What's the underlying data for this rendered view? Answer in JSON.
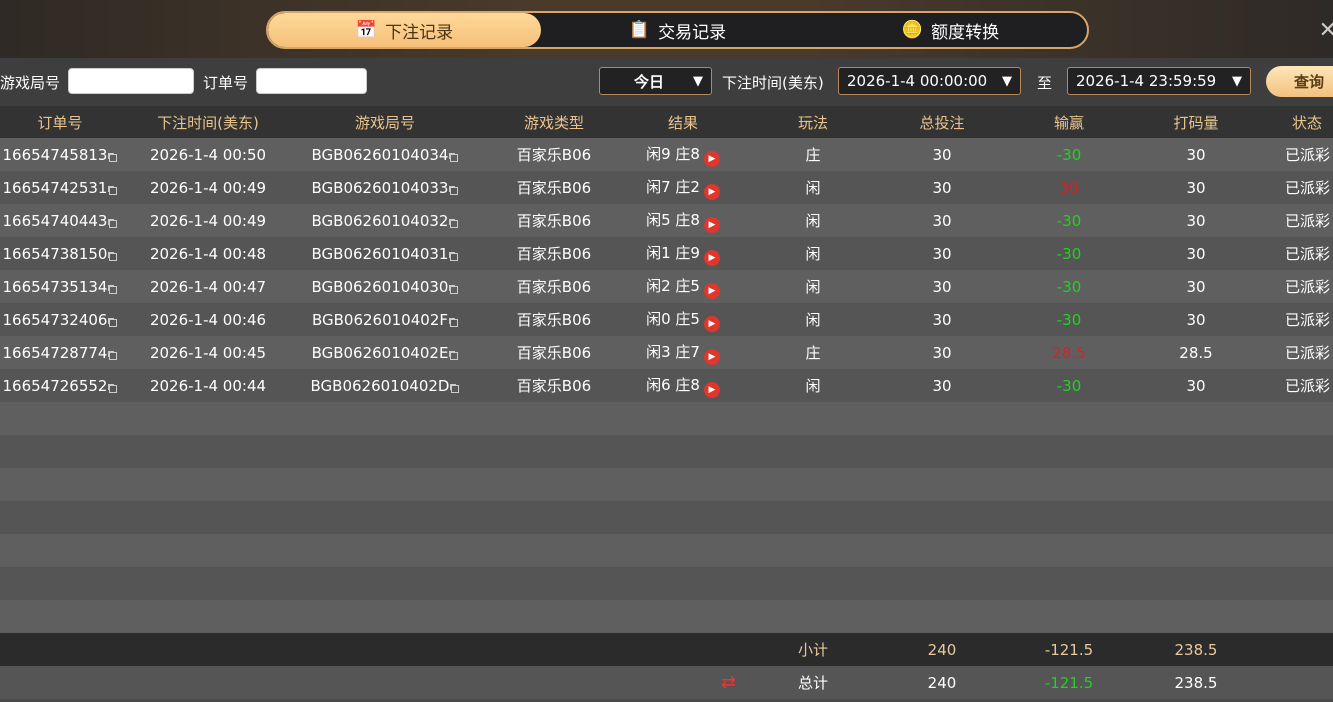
{
  "tabs": [
    {
      "label": "下注记录",
      "icon": "calendar-icon",
      "active": true
    },
    {
      "label": "交易记录",
      "icon": "clipboard-icon"
    },
    {
      "label": "额度转换",
      "icon": "coins-icon"
    }
  ],
  "filters": {
    "game_round_label": "游戏局号",
    "game_round_value": "",
    "order_label": "订单号",
    "order_value": "",
    "period": "今日",
    "time_label": "下注时间(美东)",
    "start": "2026-1-4 00:00:00",
    "to_label": "至",
    "end": "2026-1-4 23:59:59",
    "query": "查询"
  },
  "columns": [
    "订单号",
    "下注时间(美东)",
    "游戏局号",
    "游戏类型",
    "结果",
    "玩法",
    "总投注",
    "输赢",
    "打码量",
    "状态"
  ],
  "rows": [
    [
      "16654745813",
      "2026-1-4 00:50",
      "BGB06260104034",
      "百家乐B06",
      "闲9 庄8",
      "庄",
      "30",
      "-30",
      "30",
      "已派彩"
    ],
    [
      "16654742531",
      "2026-1-4 00:49",
      "BGB06260104033",
      "百家乐B06",
      "闲7 庄2",
      "闲",
      "30",
      "30",
      "30",
      "已派彩"
    ],
    [
      "16654740443",
      "2026-1-4 00:49",
      "BGB06260104032",
      "百家乐B06",
      "闲5 庄8",
      "闲",
      "30",
      "-30",
      "30",
      "已派彩"
    ],
    [
      "16654738150",
      "2026-1-4 00:48",
      "BGB06260104031",
      "百家乐B06",
      "闲1 庄9",
      "闲",
      "30",
      "-30",
      "30",
      "已派彩"
    ],
    [
      "16654735134",
      "2026-1-4 00:47",
      "BGB06260104030",
      "百家乐B06",
      "闲2 庄5",
      "闲",
      "30",
      "-30",
      "30",
      "已派彩"
    ],
    [
      "16654732406",
      "2026-1-4 00:46",
      "BGB0626010402F",
      "百家乐B06",
      "闲0 庄5",
      "闲",
      "30",
      "-30",
      "30",
      "已派彩"
    ],
    [
      "16654728774",
      "2026-1-4 00:45",
      "BGB0626010402E",
      "百家乐B06",
      "闲3 庄7",
      "庄",
      "30",
      "28.5",
      "28.5",
      "已派彩"
    ],
    [
      "16654726552",
      "2026-1-4 00:44",
      "BGB0626010402D",
      "百家乐B06",
      "闲6 庄8",
      "闲",
      "30",
      "-30",
      "30",
      "已派彩"
    ]
  ],
  "subtotal": {
    "label": "小计",
    "bet": "240",
    "winloss": "-121.5",
    "turnover": "238.5"
  },
  "total": {
    "label": "总计",
    "bet": "240",
    "winloss": "-121.5",
    "turnover": "238.5"
  },
  "colors": {
    "win": "#d3232a",
    "loss": "#1ed51e",
    "accent": "#f6c07a"
  }
}
